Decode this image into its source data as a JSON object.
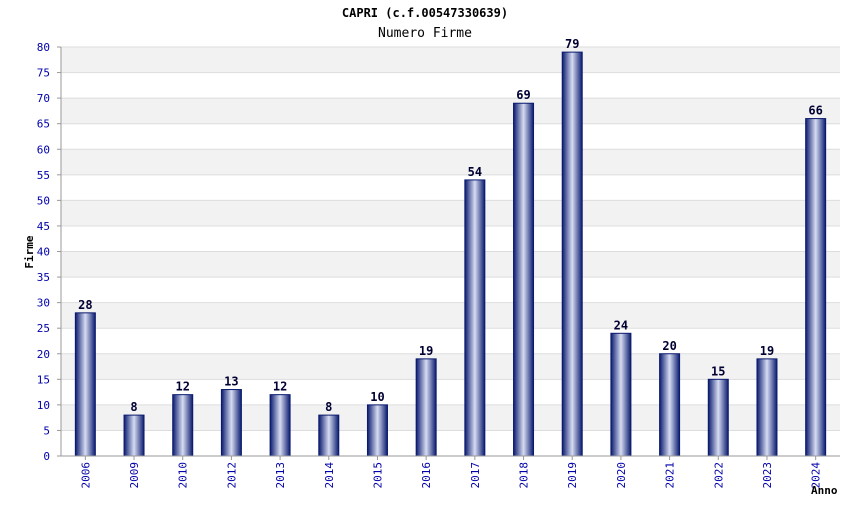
{
  "colors": {
    "bar_edge": "#0a1a6e",
    "bar_center": "#d6dcf2",
    "band": "#f2f2f2",
    "grid": "#dddddd",
    "axis": "#999999",
    "tick_text": "#0000aa"
  },
  "chart_data": {
    "type": "bar",
    "title": "CAPRI (c.f.00547330639)",
    "subtitle": "Numero Firme",
    "xlabel": "Anno",
    "ylabel": "Firme",
    "ylim": [
      0,
      80
    ],
    "ytick_step": 5,
    "grid": true,
    "categories": [
      "2006",
      "2009",
      "2010",
      "2012",
      "2013",
      "2014",
      "2015",
      "2016",
      "2017",
      "2018",
      "2019",
      "2020",
      "2021",
      "2022",
      "2023",
      "2024"
    ],
    "values": [
      28,
      8,
      12,
      13,
      12,
      8,
      10,
      19,
      54,
      69,
      79,
      24,
      20,
      15,
      19,
      66
    ]
  }
}
